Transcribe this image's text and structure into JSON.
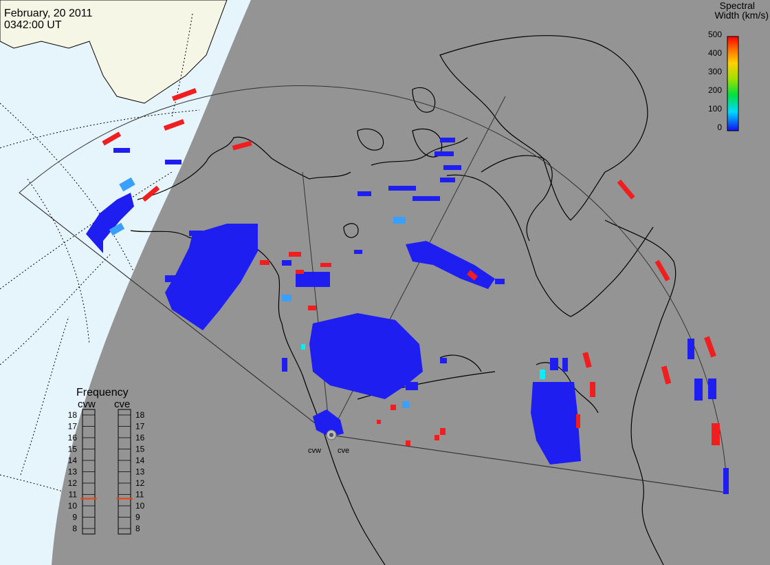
{
  "header": {
    "date": "February, 20 2011",
    "time": "0342:00 UT"
  },
  "colorbar": {
    "title_line1": "Spectral",
    "title_line2": "Width (km/s)",
    "ticks": [
      "500",
      "400",
      "300",
      "200",
      "100",
      "0"
    ]
  },
  "frequency_panel": {
    "title": "Frequency",
    "radars": [
      "cvw",
      "cve"
    ],
    "scale": [
      "18",
      "17",
      "16",
      "15",
      "14",
      "13",
      "12",
      "11",
      "10",
      "9",
      "8"
    ],
    "current": {
      "cvw": 11,
      "cve": 11
    }
  },
  "station_labels": [
    "cvw",
    "cve"
  ],
  "colors": {
    "night": "#949494",
    "day_ocean": "#e6f4fc",
    "day_land": "#f6f6e6",
    "low_width": "#1e1ef0",
    "high_width": "#f01e1e",
    "freq_marker": "#e84818"
  }
}
